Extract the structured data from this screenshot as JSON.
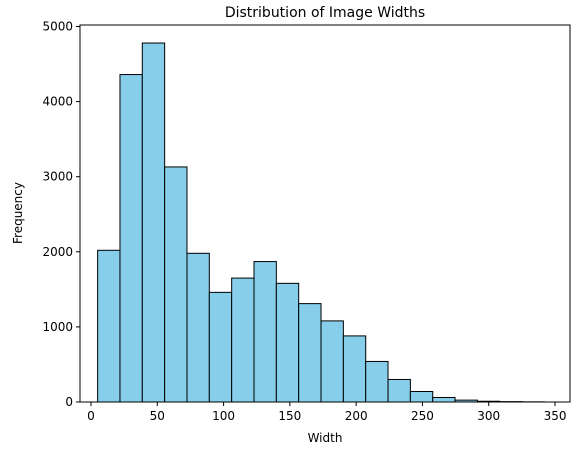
{
  "chart_data": {
    "type": "histogram",
    "title": "Distribution of Image Widths",
    "x_label": "Width",
    "y_label": "Frequency",
    "bins": [
      5,
      21.85,
      38.7,
      55.55,
      72.4,
      89.25,
      106.1,
      122.95,
      139.8,
      156.65,
      173.5,
      190.35,
      207.2,
      224.05,
      240.9,
      257.75,
      274.6,
      291.45,
      308.3,
      325.15,
      342
    ],
    "values": [
      2020,
      4360,
      4780,
      3130,
      1980,
      1460,
      1650,
      1870,
      1580,
      1310,
      1080,
      880,
      540,
      300,
      140,
      60,
      25,
      10,
      5,
      2
    ],
    "color": "#87ceeb",
    "edgecolor": "#000000",
    "xlim": [
      -8.3,
      361.3
    ],
    "ylim": [
      0,
      5020
    ],
    "xticks": [
      0,
      50,
      100,
      150,
      200,
      250,
      300,
      350
    ],
    "yticks": [
      0,
      1000,
      2000,
      3000,
      4000,
      5000
    ]
  }
}
